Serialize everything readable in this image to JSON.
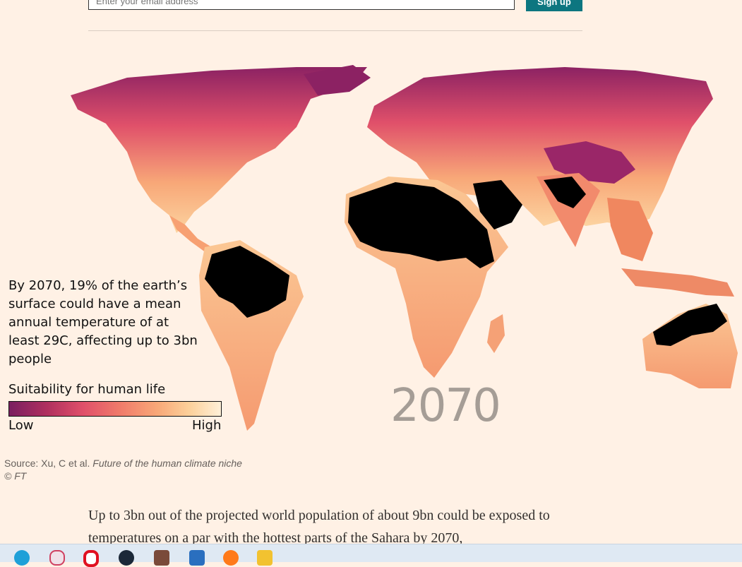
{
  "signup": {
    "email_placeholder": "Enter your email address",
    "button_label": "Sign up"
  },
  "figure": {
    "caption": "By 2070, 19% of the earth’s surface could have a mean annual temperature of at least 29C, affecting up to 3bn people",
    "legend": {
      "title": "Suitability for human life",
      "low": "Low",
      "high": "High",
      "colors": [
        "#7a1f60",
        "#b0305f",
        "#e0506a",
        "#f07a6a",
        "#f8a878",
        "#fcd09a",
        "#fff0d8"
      ],
      "extreme_color": "#000000"
    },
    "year": "2070",
    "source_prefix": "Source: Xu, C et al. ",
    "source_title": "Future of the human climate niche",
    "copyright": "© FT"
  },
  "article": {
    "paragraph": "Up to 3bn out of the projected world population of about 9bn could be exposed to temperatures on a par with the hottest parts of the Sahara by 2070,"
  },
  "taskbar": {
    "icons": [
      "edge-icon",
      "paint-icon",
      "opera-icon",
      "steam-icon",
      "photo-icon",
      "mail-icon",
      "firefox-icon",
      "folder-icon"
    ]
  }
}
